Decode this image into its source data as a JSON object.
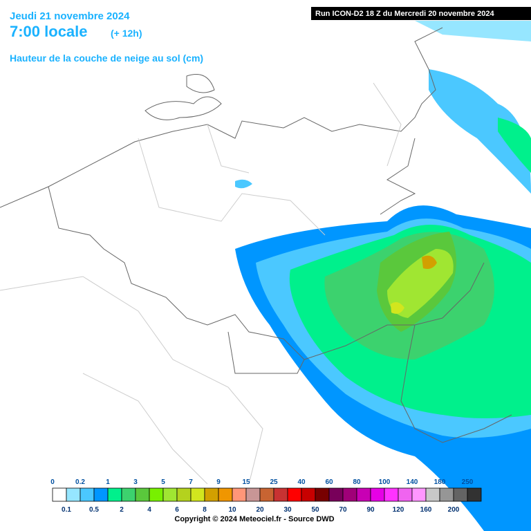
{
  "header": {
    "date": "Jeudi 21 novembre 2024",
    "time": "7:00 locale",
    "lead": "(+ 12h)",
    "field": "Hauteur de la couche de neige au sol (cm)",
    "run": "Run ICON-D2 18 Z du Mercredi 20 novembre 2024"
  },
  "legend": {
    "items": [
      {
        "label": "0",
        "color": "#ffffff"
      },
      {
        "label": "0.1",
        "color": "#96e6ff"
      },
      {
        "label": "0.2",
        "color": "#4bc8ff"
      },
      {
        "label": "0.5",
        "color": "#0096ff"
      },
      {
        "label": "1",
        "color": "#00f08c"
      },
      {
        "label": "2",
        "color": "#3cd26e"
      },
      {
        "label": "3",
        "color": "#5ac83c"
      },
      {
        "label": "4",
        "color": "#78f000"
      },
      {
        "label": "5",
        "color": "#a0e632"
      },
      {
        "label": "6",
        "color": "#b4d21e"
      },
      {
        "label": "7",
        "color": "#d2e61e"
      },
      {
        "label": "8",
        "color": "#d2a000"
      },
      {
        "label": "9",
        "color": "#f09600"
      },
      {
        "label": "10",
        "color": "#ff9678"
      },
      {
        "label": "15",
        "color": "#c89696"
      },
      {
        "label": "20",
        "color": "#c86432"
      },
      {
        "label": "25",
        "color": "#c83232"
      },
      {
        "label": "30",
        "color": "#ff0000"
      },
      {
        "label": "40",
        "color": "#c80000"
      },
      {
        "label": "50",
        "color": "#780000"
      },
      {
        "label": "60",
        "color": "#78005a"
      },
      {
        "label": "70",
        "color": "#a00078"
      },
      {
        "label": "80",
        "color": "#c800b4"
      },
      {
        "label": "90",
        "color": "#e600e6"
      },
      {
        "label": "100",
        "color": "#ff32ff"
      },
      {
        "label": "120",
        "color": "#f064f0"
      },
      {
        "label": "140",
        "color": "#ff96ff"
      },
      {
        "label": "160",
        "color": "#c8c8c8"
      },
      {
        "label": "180",
        "color": "#969696"
      },
      {
        "label": "200",
        "color": "#646464"
      },
      {
        "label": "250",
        "color": "#323232"
      }
    ]
  },
  "footer": {
    "copyright": "Copyright © 2024 Meteociel.fr - Source DWD"
  }
}
